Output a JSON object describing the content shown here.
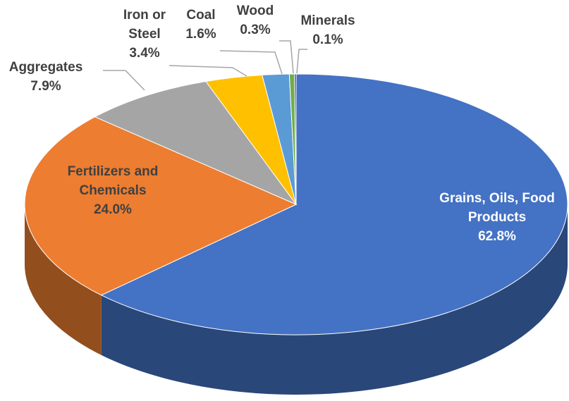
{
  "chart_data": {
    "type": "pie",
    "categories": [
      "Grains, Oils, Food Products",
      "Fertilizers and Chemicals",
      "Aggregates",
      "Iron or Steel",
      "Coal",
      "Wood",
      "Minerals"
    ],
    "values": [
      62.8,
      24.0,
      7.9,
      3.4,
      1.6,
      0.3,
      0.1
    ],
    "value_labels": [
      "62.8%",
      "24.0%",
      "7.9%",
      "3.4%",
      "1.6%",
      "0.3%",
      "0.1%"
    ],
    "colors": [
      "#4472c4",
      "#ed7d31",
      "#a5a5a5",
      "#ffc000",
      "#5b9bd5",
      "#70ad47",
      "#264478"
    ]
  }
}
